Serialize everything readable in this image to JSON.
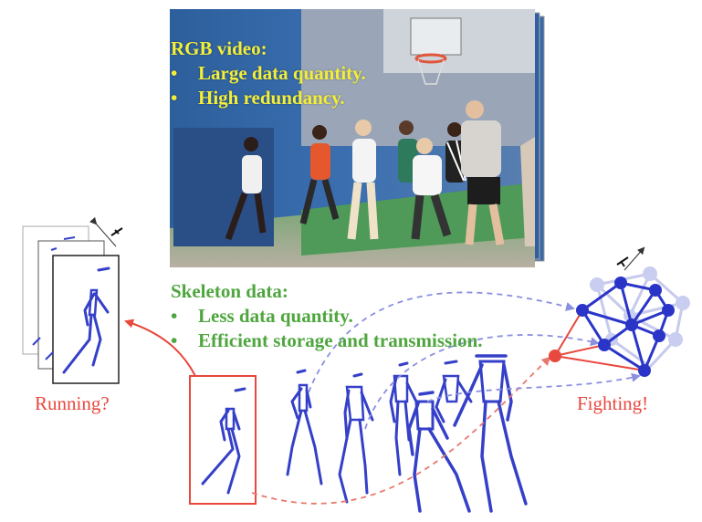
{
  "rgb": {
    "title": "RGB video:",
    "bullets": [
      "Large data quantity.",
      "High redundancy."
    ]
  },
  "skeleton": {
    "title": "Skeleton data:",
    "bullets": [
      "Less data quantity.",
      "Efficient storage and transmission."
    ]
  },
  "labels": {
    "left": "Running?",
    "right": "Fighting!"
  },
  "bullet_char": "•",
  "colors": {
    "rgb_text": "#f2ee3a",
    "skeleton_text": "#4fa63f",
    "skeleton_blue": "#3540c8",
    "red": "#e8483e",
    "dash_blue": "#8a8fe0",
    "court_blue": "#2f5f9e",
    "court_floor": "#5a9a5c"
  },
  "icons": {
    "time_axis": "time-axis-icon",
    "graph": "graph-network-icon"
  }
}
